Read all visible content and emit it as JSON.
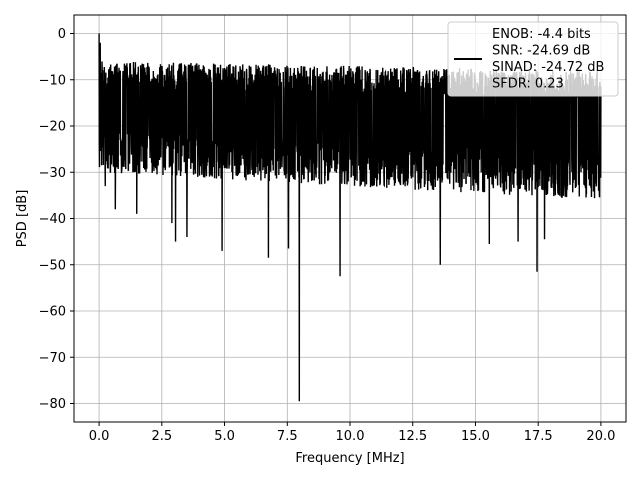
{
  "chart_data": {
    "type": "line",
    "title": "",
    "xlabel": "Frequency [MHz]",
    "ylabel": "PSD [dB]",
    "xlim": [
      -1.0,
      21.0
    ],
    "ylim": [
      -84.0,
      4.0
    ],
    "xticks": [
      0.0,
      2.5,
      5.0,
      7.5,
      10.0,
      12.5,
      15.0,
      17.5,
      20.0
    ],
    "xtick_labels": [
      "0.0",
      "2.5",
      "5.0",
      "7.5",
      "10.0",
      "12.5",
      "15.0",
      "17.5",
      "20.0"
    ],
    "yticks": [
      0,
      -10,
      -20,
      -30,
      -40,
      -50,
      -60,
      -70,
      -80
    ],
    "ytick_labels": [
      "0",
      "−10",
      "−20",
      "−30",
      "−40",
      "−50",
      "−60",
      "−70",
      "−80"
    ],
    "grid": true,
    "legend_position": "top-right",
    "series": [
      {
        "name": "ENOB: -4.4 bits\nSNR: -24.69 dB\nSINAD: -24.72 dB\nSFDR: 0.23",
        "legend_lines": [
          "ENOB: -4.4 bits",
          "SNR: -24.69 dB",
          "SINAD: -24.72 dB",
          "SFDR: 0.23"
        ],
        "color": "#000000",
        "noise_upper_envelope_db": [
          -6,
          -8
        ],
        "noise_lower_envelope_db": [
          -30,
          -36
        ],
        "peaks": [
          {
            "x": 0.0,
            "y": 0.0
          },
          {
            "x": 0.05,
            "y": -2.0
          }
        ],
        "deep_nulls": [
          {
            "x": 0.25,
            "y": -33
          },
          {
            "x": 0.65,
            "y": -38
          },
          {
            "x": 1.5,
            "y": -39
          },
          {
            "x": 2.9,
            "y": -41
          },
          {
            "x": 3.05,
            "y": -45
          },
          {
            "x": 3.5,
            "y": -44
          },
          {
            "x": 4.9,
            "y": -47
          },
          {
            "x": 6.75,
            "y": -48.5
          },
          {
            "x": 7.55,
            "y": -46.5
          },
          {
            "x": 7.98,
            "y": -79.5
          },
          {
            "x": 9.6,
            "y": -52.5
          },
          {
            "x": 13.6,
            "y": -50
          },
          {
            "x": 15.55,
            "y": -45.5
          },
          {
            "x": 16.7,
            "y": -45
          },
          {
            "x": 17.45,
            "y": -51.5
          },
          {
            "x": 17.75,
            "y": -44.5
          }
        ],
        "x_range": [
          0.0,
          20.0
        ]
      }
    ]
  }
}
